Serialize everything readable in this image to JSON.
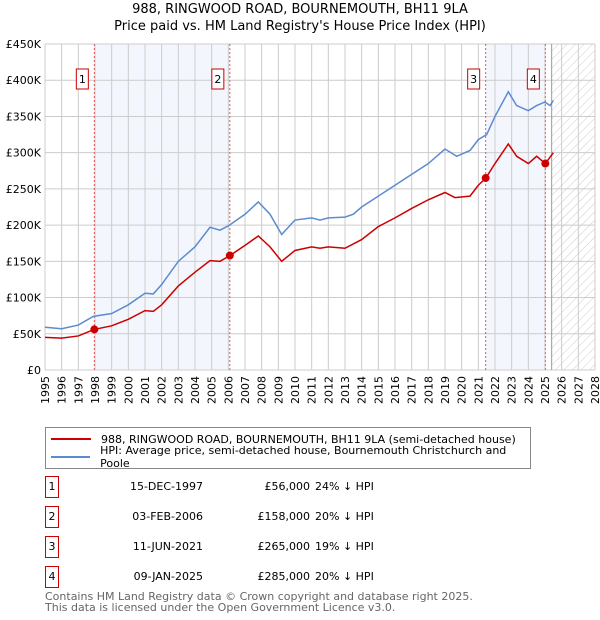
{
  "chart_data": {
    "type": "line",
    "title": "988, RINGWOOD ROAD, BOURNEMOUTH, BH11 9LA",
    "subtitle": "Price paid vs. HM Land Registry's House Price Index (HPI)",
    "xlim": [
      1995,
      2028
    ],
    "ylim": [
      0,
      450000
    ],
    "x_ticks": [
      "1995",
      "1996",
      "1997",
      "1998",
      "1999",
      "2000",
      "2001",
      "2002",
      "2003",
      "2004",
      "2005",
      "2006",
      "2007",
      "2008",
      "2009",
      "2010",
      "2011",
      "2012",
      "2013",
      "2014",
      "2015",
      "2016",
      "2017",
      "2018",
      "2019",
      "2020",
      "2021",
      "2022",
      "2023",
      "2024",
      "2025",
      "2026",
      "2027",
      "2028"
    ],
    "y_ticks": [
      {
        "v": 0,
        "label": "£0"
      },
      {
        "v": 50000,
        "label": "£50K"
      },
      {
        "v": 100000,
        "label": "£100K"
      },
      {
        "v": 150000,
        "label": "£150K"
      },
      {
        "v": 200000,
        "label": "£200K"
      },
      {
        "v": 250000,
        "label": "£250K"
      },
      {
        "v": 300000,
        "label": "£300K"
      },
      {
        "v": 350000,
        "label": "£350K"
      },
      {
        "v": 400000,
        "label": "£400K"
      },
      {
        "v": 450000,
        "label": "£450K"
      }
    ],
    "grid": true,
    "forecast_from": 2025.4,
    "series": [
      {
        "name": "988, RINGWOOD ROAD, BOURNEMOUTH, BH11 9LA (semi-detached house)",
        "color": "#cc0000",
        "points": [
          [
            1995,
            45
          ],
          [
            1996,
            44
          ],
          [
            1997,
            47
          ],
          [
            1997.95,
            56
          ],
          [
            1999,
            61
          ],
          [
            2000,
            70
          ],
          [
            2001,
            82
          ],
          [
            2001.5,
            81
          ],
          [
            2002,
            90
          ],
          [
            2003,
            116
          ],
          [
            2004,
            135
          ],
          [
            2004.9,
            151
          ],
          [
            2005.5,
            150
          ],
          [
            2006.1,
            158
          ],
          [
            2007,
            172
          ],
          [
            2007.8,
            185
          ],
          [
            2008.5,
            170
          ],
          [
            2009.2,
            150
          ],
          [
            2010,
            165
          ],
          [
            2011,
            170
          ],
          [
            2011.5,
            168
          ],
          [
            2012,
            170
          ],
          [
            2013,
            168
          ],
          [
            2014,
            180
          ],
          [
            2015,
            198
          ],
          [
            2016,
            210
          ],
          [
            2017,
            223
          ],
          [
            2018,
            235
          ],
          [
            2019,
            245
          ],
          [
            2019.6,
            238
          ],
          [
            2020.5,
            240
          ],
          [
            2021,
            255
          ],
          [
            2021.45,
            265
          ],
          [
            2022,
            285
          ],
          [
            2022.8,
            312
          ],
          [
            2023.3,
            295
          ],
          [
            2024,
            285
          ],
          [
            2024.5,
            295
          ],
          [
            2025.02,
            285
          ],
          [
            2025.5,
            300
          ]
        ]
      },
      {
        "name": "HPI: Average price, semi-detached house, Bournemouth Christchurch and Poole",
        "color": "#5b8bd0",
        "points": [
          [
            1995,
            59
          ],
          [
            1996,
            57
          ],
          [
            1997,
            62
          ],
          [
            1997.9,
            74
          ],
          [
            1999,
            78
          ],
          [
            2000,
            90
          ],
          [
            2001,
            106
          ],
          [
            2001.5,
            105
          ],
          [
            2002,
            118
          ],
          [
            2003,
            150
          ],
          [
            2004,
            170
          ],
          [
            2004.9,
            197
          ],
          [
            2005.5,
            193
          ],
          [
            2006,
            199
          ],
          [
            2007,
            215
          ],
          [
            2007.8,
            232
          ],
          [
            2008.5,
            215
          ],
          [
            2009.2,
            187
          ],
          [
            2010,
            207
          ],
          [
            2011,
            210
          ],
          [
            2011.5,
            207
          ],
          [
            2012,
            210
          ],
          [
            2013,
            211
          ],
          [
            2013.5,
            215
          ],
          [
            2014,
            225
          ],
          [
            2015,
            240
          ],
          [
            2016,
            255
          ],
          [
            2017,
            270
          ],
          [
            2018,
            285
          ],
          [
            2019,
            305
          ],
          [
            2019.7,
            295
          ],
          [
            2020.5,
            303
          ],
          [
            2021,
            318
          ],
          [
            2021.5,
            325
          ],
          [
            2022,
            350
          ],
          [
            2022.8,
            384
          ],
          [
            2023.3,
            365
          ],
          [
            2024,
            358
          ],
          [
            2024.5,
            365
          ],
          [
            2025,
            370
          ],
          [
            2025.3,
            365
          ],
          [
            2025.5,
            372
          ]
        ]
      }
    ],
    "y_units": "thousands GBP",
    "sales": [
      {
        "num": "1",
        "x": 1997.96,
        "value": 56,
        "date": "15-DEC-1997",
        "price": "£56,000",
        "hpi": "24% ↓ HPI"
      },
      {
        "num": "2",
        "x": 2006.09,
        "value": 158,
        "date": "03-FEB-2006",
        "price": "£158,000",
        "hpi": "20% ↓ HPI"
      },
      {
        "num": "3",
        "x": 2021.44,
        "value": 265,
        "date": "11-JUN-2021",
        "price": "£265,000",
        "hpi": "19% ↓ HPI"
      },
      {
        "num": "4",
        "x": 2025.02,
        "value": 285,
        "date": "09-JAN-2025",
        "price": "£285,000",
        "hpi": "20% ↓ HPI"
      }
    ]
  },
  "footer": [
    "Contains HM Land Registry data © Crown copyright and database right 2025.",
    "This data is licensed under the Open Government Licence v3.0."
  ]
}
